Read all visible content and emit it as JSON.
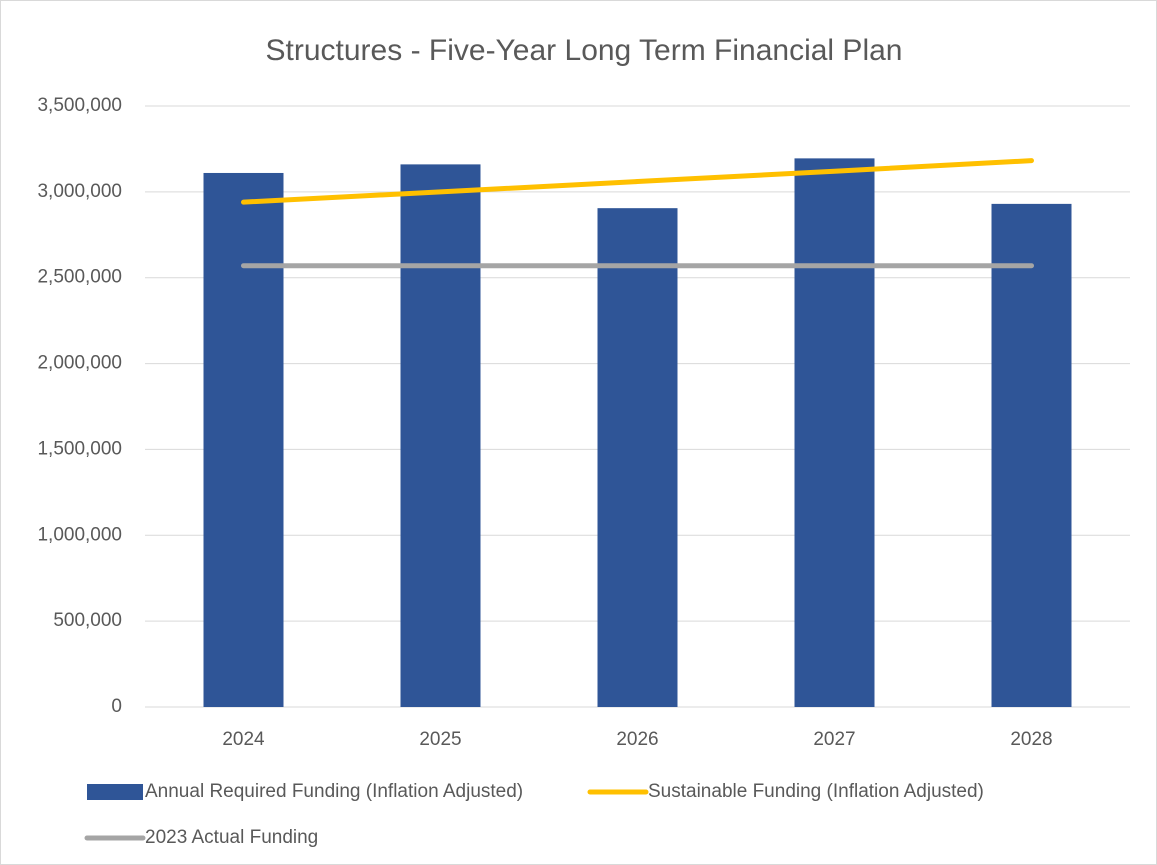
{
  "chart_data": {
    "type": "bar",
    "title": "Structures - Five-Year Long Term Financial Plan",
    "categories": [
      "2024",
      "2025",
      "2026",
      "2027",
      "2028"
    ],
    "series": [
      {
        "name": "Annual Required Funding (Inflation Adjusted)",
        "type": "bar",
        "color": "#2f5597",
        "values": [
          3110000,
          3160000,
          2905000,
          3195000,
          2930000
        ]
      },
      {
        "name": "Sustainable Funding (Inflation Adjusted)",
        "type": "line",
        "color": "#ffc000",
        "values": [
          2940000,
          3000000,
          3060000,
          3120000,
          3182000
        ]
      },
      {
        "name": "2023 Actual Funding",
        "type": "line",
        "color": "#a5a5a5",
        "values": [
          2570000,
          2570000,
          2570000,
          2570000,
          2570000
        ]
      }
    ],
    "ylim": [
      0,
      3500000
    ],
    "yticks": [
      0,
      {
        "value": 500000,
        "label": "500,000"
      },
      {
        "value": 1000000,
        "label": "1,000,000"
      },
      {
        "value": 1500000,
        "label": "1,500,000"
      },
      {
        "value": 2000000,
        "label": "2,000,000"
      },
      {
        "value": 2500000,
        "label": "2,500,000"
      },
      {
        "value": 3000000,
        "label": "3,000,000"
      },
      {
        "value": 3500000,
        "label": "3,500,000"
      }
    ],
    "grid": true
  }
}
